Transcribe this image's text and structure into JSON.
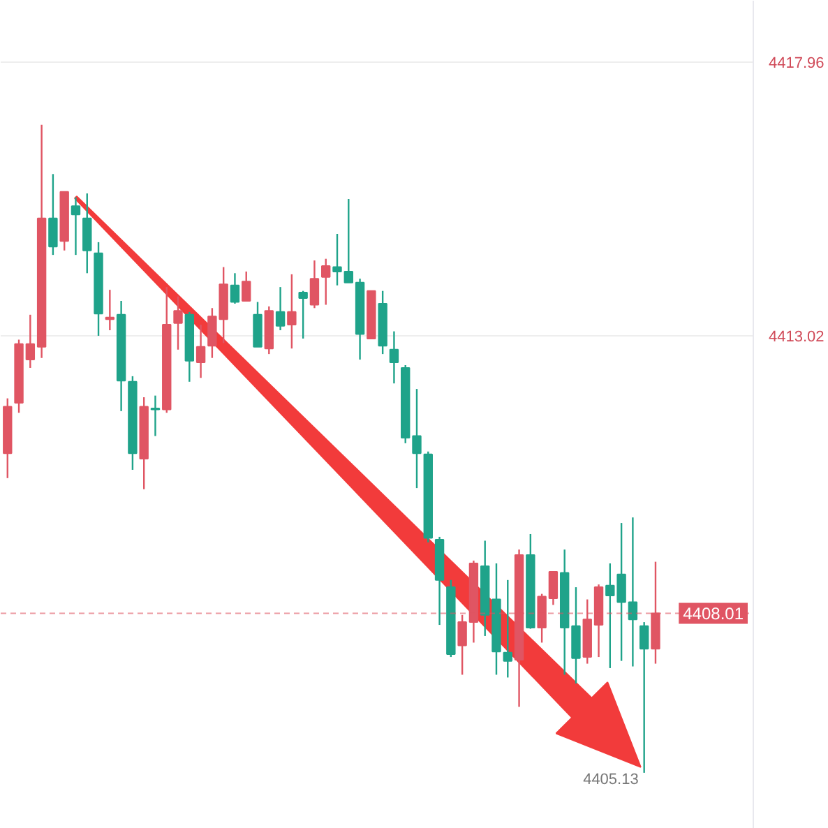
{
  "chart_data": {
    "type": "candlestick",
    "categories": [
      null,
      null,
      null,
      null,
      null,
      null,
      null,
      null,
      null,
      null,
      null,
      null,
      null,
      null,
      null,
      null,
      null,
      null,
      null,
      null,
      null,
      null,
      null,
      null,
      null,
      null,
      null,
      null,
      null,
      null,
      null,
      null,
      null,
      null,
      null,
      null,
      null,
      null,
      null,
      null,
      null,
      null,
      null,
      null,
      null,
      null,
      null,
      null,
      null,
      null,
      null,
      null,
      null,
      null,
      null,
      null,
      null,
      null,
      null,
      null,
      null,
      null,
      null,
      null,
      null,
      null
    ],
    "ohlc": [
      [
        4410.9,
        4411.89,
        4410.45,
        4411.74
      ],
      [
        4411.81,
        4412.95,
        4411.63,
        4412.87
      ],
      [
        4412.59,
        4413.4,
        4412.44,
        4412.87
      ],
      [
        4412.82,
        4416.83,
        4412.62,
        4415.14
      ],
      [
        4415.14,
        4415.94,
        4414.48,
        4414.63
      ],
      [
        4414.73,
        4415.62,
        4414.56,
        4415.62
      ],
      [
        4415.36,
        4415.52,
        4414.48,
        4415.21
      ],
      [
        4415.14,
        4415.59,
        4414.15,
        4414.56
      ],
      [
        4414.51,
        4414.71,
        4413.02,
        4413.42
      ],
      [
        4413.32,
        4413.85,
        4413.12,
        4413.35
      ],
      [
        4413.4,
        4413.65,
        4411.66,
        4412.21
      ],
      [
        4412.19,
        4412.29,
        4410.6,
        4410.9
      ],
      [
        4410.8,
        4411.91,
        4410.25,
        4411.74
      ],
      [
        4411.71,
        4411.94,
        4411.21,
        4411.69
      ],
      [
        4411.69,
        4413.9,
        4411.63,
        4413.22
      ],
      [
        4413.25,
        4413.73,
        4412.77,
        4413.47
      ],
      [
        4413.4,
        4413.45,
        4412.19,
        4412.57
      ],
      [
        4412.54,
        4413.22,
        4412.26,
        4412.82
      ],
      [
        4412.84,
        4413.52,
        4412.62,
        4413.37
      ],
      [
        4413.32,
        4414.26,
        4412.89,
        4413.95
      ],
      [
        4413.93,
        4414.15,
        4413.6,
        4413.63
      ],
      [
        4413.65,
        4414.18,
        4413.65,
        4414.0
      ],
      [
        4413.4,
        4413.63,
        4412.82,
        4412.82
      ],
      [
        4412.79,
        4413.55,
        4412.69,
        4413.47
      ],
      [
        4413.45,
        4413.9,
        4413.12,
        4413.2
      ],
      [
        4413.22,
        4414.13,
        4412.79,
        4413.45
      ],
      [
        4413.8,
        4413.83,
        4412.97,
        4413.7
      ],
      [
        4413.58,
        4414.38,
        4413.52,
        4414.05
      ],
      [
        4414.08,
        4414.41,
        4413.58,
        4414.28
      ],
      [
        4414.26,
        4414.86,
        4413.93,
        4414.18
      ],
      [
        4414.18,
        4415.49,
        4413.98,
        4413.98
      ],
      [
        4413.98,
        4414.05,
        4412.59,
        4413.05
      ],
      [
        4412.97,
        4413.83,
        4412.97,
        4413.83
      ],
      [
        4413.6,
        4413.83,
        4412.69,
        4412.84
      ],
      [
        4412.77,
        4413.1,
        4412.16,
        4412.54
      ],
      [
        4412.44,
        4412.49,
        4411.08,
        4411.18
      ],
      [
        4411.21,
        4412.06,
        4410.27,
        4410.9
      ],
      [
        4410.88,
        4410.93,
        4409.29,
        4409.37
      ],
      [
        4409.34,
        4409.39,
        4407.8,
        4408.61
      ],
      [
        4408.48,
        4408.61,
        4407.22,
        4407.27
      ],
      [
        4407.43,
        4407.98,
        4406.9,
        4407.85
      ],
      [
        4407.85,
        4408.96,
        4407.48,
        4408.91
      ],
      [
        4408.86,
        4409.32,
        4407.6,
        4407.98
      ],
      [
        4408.26,
        4408.91,
        4406.9,
        4407.32
      ],
      [
        4407.3,
        4408.61,
        4406.85,
        4407.15
      ],
      [
        4407.17,
        4409.16,
        4406.32,
        4409.06
      ],
      [
        4409.06,
        4409.44,
        4407.73,
        4407.75
      ],
      [
        4407.75,
        4408.36,
        4407.48,
        4408.31
      ],
      [
        4408.28,
        4408.76,
        4408.16,
        4408.76
      ],
      [
        4408.74,
        4409.16,
        4406.9,
        4407.75
      ],
      [
        4407.78,
        4408.48,
        4406.74,
        4407.2
      ],
      [
        4407.22,
        4408.26,
        4407.1,
        4407.9
      ],
      [
        4407.8,
        4408.53,
        4407.22,
        4408.48
      ],
      [
        4408.51,
        4408.91,
        4407.02,
        4408.33
      ],
      [
        4408.71,
        4409.64,
        4407.15,
        4408.21
      ],
      [
        4408.21,
        4409.74,
        4407.05,
        4407.9
      ],
      [
        4407.78,
        4407.85,
        4405.13,
        4407.37
      ],
      [
        4407.37,
        4408.94,
        4407.1,
        4408.01
      ],
      null,
      null,
      null,
      null,
      null,
      null,
      null,
      null
    ],
    "colors": [
      "#e05563",
      "#e05563",
      "#e05563",
      "#e05563",
      "#1fa38a",
      "#e05563",
      "#1fa38a",
      "#1fa38a",
      "#1fa38a",
      "#e05563",
      "#1fa38a",
      "#1fa38a",
      "#e05563",
      "#1fa38a",
      "#e05563",
      "#e05563",
      "#1fa38a",
      "#e05563",
      "#e05563",
      "#e05563",
      "#1fa38a",
      "#e05563",
      "#1fa38a",
      "#e05563",
      "#1fa38a",
      "#e05563",
      "#1fa38a",
      "#e05563",
      "#e05563",
      "#1fa38a",
      "#1fa38a",
      "#1fa38a",
      "#e05563",
      "#1fa38a",
      "#1fa38a",
      "#1fa38a",
      "#1fa38a",
      "#1fa38a",
      "#1fa38a",
      "#1fa38a",
      "#e05563",
      "#e05563",
      "#1fa38a",
      "#1fa38a",
      "#1fa38a",
      "#e05563",
      "#1fa38a",
      "#e05563",
      "#e05563",
      "#1fa38a",
      "#1fa38a",
      "#e05563",
      "#e05563",
      "#1fa38a",
      "#1fa38a",
      "#1fa38a",
      "#1fa38a",
      "#e05563",
      null,
      null,
      null,
      null,
      null,
      null,
      null,
      null
    ],
    "ylim": [
      4404.12,
      4419.07
    ],
    "yticks": [
      4417.96,
      4413.02
    ],
    "grid": "y",
    "tick_labels": "y",
    "ref_lines": [
      {
        "axis": "y",
        "value": 4408.01,
        "label": "4408.01",
        "color": "#e05563",
        "line_style": "dashed"
      }
    ],
    "annotations": [
      "4405.13"
    ]
  }
}
